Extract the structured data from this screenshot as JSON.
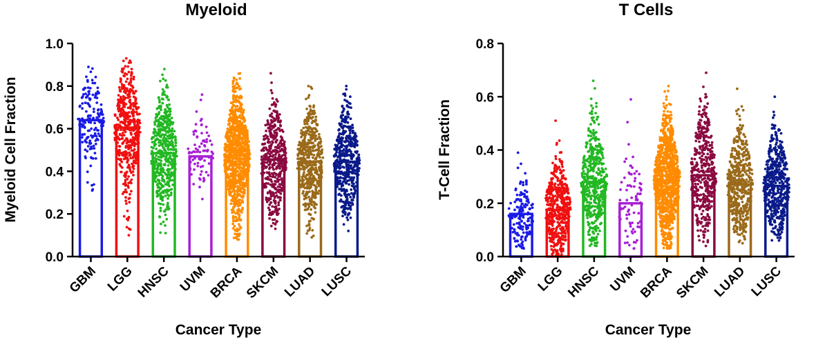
{
  "colors": {
    "GBM": "#1a1ae6",
    "LGG": "#f01010",
    "HNSC": "#22b822",
    "UVM": "#a81fd6",
    "BRCA": "#ff8c00",
    "SKCM": "#8a0a40",
    "LUAD": "#9a6a1a",
    "LUSC": "#0a1a8a"
  },
  "chart_data": [
    {
      "type": "bar",
      "subtype": "bar-with-scatter",
      "title": "Myeloid",
      "xlabel": "Cancer Type",
      "ylabel": "Myeloid Cell Fraction",
      "ylim": [
        0,
        1.0
      ],
      "yticks": [
        "0.0",
        "0.2",
        "0.4",
        "0.6",
        "0.8",
        "1.0"
      ],
      "grid": false,
      "legend": "none",
      "categories": [
        "GBM",
        "LGG",
        "HNSC",
        "UVM",
        "BRCA",
        "SKCM",
        "LUAD",
        "LUSC"
      ],
      "values": [
        0.64,
        0.605,
        0.485,
        0.47,
        0.475,
        0.455,
        0.445,
        0.445
      ],
      "point_ranges": [
        [
          0.31,
          0.89
        ],
        [
          0.1,
          0.93
        ],
        [
          0.11,
          0.88
        ],
        [
          0.27,
          0.76
        ],
        [
          0.08,
          0.86
        ],
        [
          0.13,
          0.86
        ],
        [
          0.09,
          0.8
        ],
        [
          0.12,
          0.8
        ]
      ],
      "point_counts": [
        160,
        500,
        500,
        80,
        1000,
        450,
        500,
        500
      ]
    },
    {
      "type": "bar",
      "subtype": "bar-with-scatter",
      "title": "T Cells",
      "xlabel": "Cancer Type",
      "ylabel": "T-Cell Fraction",
      "ylim": [
        0,
        0.8
      ],
      "yticks": [
        "0.0",
        "0.2",
        "0.4",
        "0.6",
        "0.8"
      ],
      "grid": false,
      "legend": "none",
      "categories": [
        "GBM",
        "LGG",
        "HNSC",
        "UVM",
        "BRCA",
        "SKCM",
        "LUAD",
        "LUSC"
      ],
      "values": [
        0.16,
        0.175,
        0.28,
        0.2,
        0.285,
        0.305,
        0.27,
        0.265
      ],
      "point_ranges": [
        [
          0.03,
          0.39
        ],
        [
          0.0,
          0.51
        ],
        [
          0.04,
          0.66
        ],
        [
          0.03,
          0.59
        ],
        [
          0.03,
          0.64
        ],
        [
          0.04,
          0.69
        ],
        [
          0.05,
          0.63
        ],
        [
          0.06,
          0.6
        ]
      ],
      "point_counts": [
        160,
        500,
        500,
        80,
        1000,
        450,
        500,
        500
      ]
    }
  ]
}
